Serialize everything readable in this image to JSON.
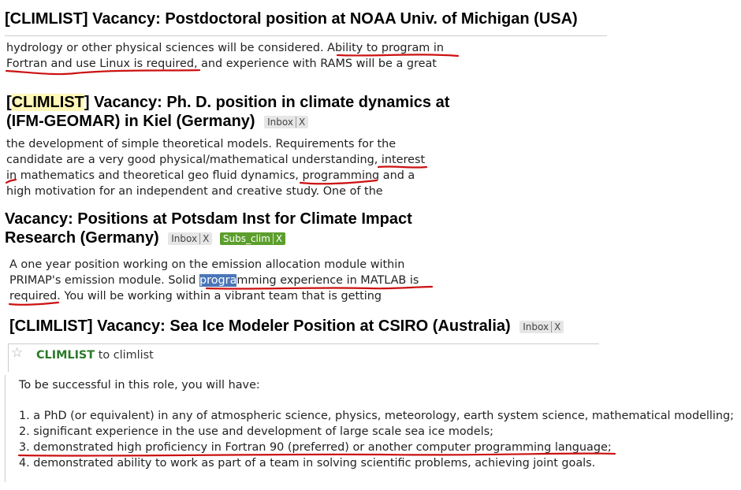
{
  "snippet1": {
    "title": "[CLIMLIST] Vacancy: Postdoctoral position at NOAA Univ. of Michigan (USA)",
    "lines": [
      "hydrology or other physical sciences will be considered.  Ability to program in",
      "Fortran and use Linux is required, and experience with RAMS will be a great"
    ]
  },
  "snippet2": {
    "title_prefix": "[",
    "title_highlight": "CLIMLIST",
    "title_rest_1": "] Vacancy: Ph. D. position in climate dynamics at",
    "title_line2": "(IFM-GEOMAR) in Kiel (Germany)",
    "label": "Inbox",
    "label_x": "X",
    "lines": [
      "the development of simple theoretical models. Requirements for the",
      "candidate are a very good physical/mathematical understanding, interest",
      "in mathematics and theoretical geo fluid dynamics, programming and a",
      "high motivation for an independent and creative study. One of the"
    ]
  },
  "snippet3": {
    "title_line1": "Vacancy: Positions at Potsdam Inst for Climate Impact",
    "title_line2": "Research (Germany)",
    "label1": "Inbox",
    "label1_x": "X",
    "label2": "Subs_clim",
    "label2_x": "X",
    "line1": "A one year position working on the emission allocation module within",
    "line2_before": "PRIMAP's emission module. Solid ",
    "line2_selected": "progra",
    "line2_after": "mming experience in MATLAB is",
    "line3": "required. You will be working within a vibrant team that is getting"
  },
  "snippet4": {
    "title": "[CLIMLIST] Vacancy: Sea Ice Modeler Position at CSIRO (Australia)",
    "label": "Inbox",
    "label_x": "X",
    "star": "☆",
    "sender": "CLIMLIST",
    "to_text": "to climlist",
    "intro": "To be successful in this role, you will have:",
    "items": [
      "1. a PhD (or equivalent) in any of atmospheric science, physics, meteorology, earth system science, mathematical modelling;",
      "2. significant experience in the use and development of large scale sea ice models;",
      "3. demonstrated high proficiency in Fortran 90 (preferred) or another computer programming language;",
      "4. demonstrated ability to work as part of a team in solving scientific problems, achieving joint goals."
    ]
  },
  "colors": {
    "annotation_red": "#cc1111",
    "label_green": "#5c9e2c",
    "selection_blue": "#4a76b8",
    "highlight_yellow": "#fff7b8",
    "sender_green": "#2a7a2a"
  }
}
